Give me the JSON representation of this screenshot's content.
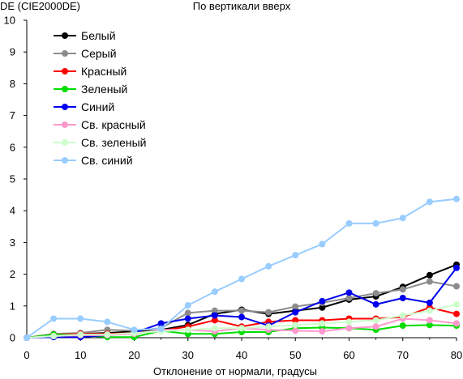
{
  "chart_data": {
    "type": "line",
    "title": "По вертикали вверх",
    "ylabel": "DE (CIE2000DE)",
    "xlabel": "Отклонение от нормали, градусы",
    "xlim": [
      0,
      80
    ],
    "ylim": [
      0,
      10
    ],
    "xticks": [
      0,
      10,
      20,
      30,
      40,
      50,
      60,
      70,
      80
    ],
    "yticks": [
      0,
      1,
      2,
      3,
      4,
      5,
      6,
      7,
      8,
      9,
      10
    ],
    "grid": false,
    "legend_position": "top-left",
    "x": [
      0,
      5,
      10,
      15,
      20,
      25,
      30,
      35,
      40,
      45,
      50,
      55,
      60,
      65,
      70,
      75,
      80
    ],
    "series": [
      {
        "name": "Белый",
        "color": "#000000",
        "values": [
          0,
          0.1,
          0.12,
          0.15,
          0.2,
          0.25,
          0.4,
          0.75,
          0.88,
          0.75,
          0.85,
          0.95,
          1.2,
          1.3,
          1.6,
          1.97,
          2.3
        ]
      },
      {
        "name": "Серый",
        "color": "#8c8c8c",
        "values": [
          0,
          0.12,
          0.15,
          0.25,
          0.22,
          0.3,
          0.78,
          0.85,
          0.85,
          0.8,
          0.98,
          1.1,
          1.25,
          1.4,
          1.52,
          1.77,
          1.62
        ]
      },
      {
        "name": "Красный",
        "color": "#ff0000",
        "values": [
          0,
          0.1,
          0.12,
          0.12,
          0.15,
          0.22,
          0.35,
          0.55,
          0.35,
          0.5,
          0.55,
          0.55,
          0.6,
          0.6,
          0.65,
          0.95,
          0.75
        ]
      },
      {
        "name": "Зеленый",
        "color": "#00dd00",
        "values": [
          0,
          0.1,
          0.08,
          0.02,
          0.02,
          0.22,
          0.12,
          0.12,
          0.18,
          0.18,
          0.3,
          0.32,
          0.3,
          0.25,
          0.38,
          0.4,
          0.38
        ]
      },
      {
        "name": "Синий",
        "color": "#0000ee",
        "values": [
          0,
          0.02,
          0.02,
          0.08,
          0.15,
          0.45,
          0.6,
          0.7,
          0.65,
          0.38,
          0.8,
          1.15,
          1.42,
          1.05,
          1.25,
          1.1,
          2.2
        ]
      },
      {
        "name": "Св. красный",
        "color": "#ff99cc",
        "values": [
          0,
          0.05,
          0.08,
          0.08,
          0.12,
          0.25,
          0.25,
          0.2,
          0.3,
          0.25,
          0.22,
          0.2,
          0.3,
          0.35,
          0.6,
          0.55,
          0.45
        ]
      },
      {
        "name": "Св. зеленый",
        "color": "#ccffcc",
        "values": [
          0,
          0.05,
          0.1,
          0.1,
          0.15,
          0.2,
          0.25,
          0.3,
          0.3,
          0.35,
          0.4,
          0.45,
          0.5,
          0.55,
          0.7,
          0.85,
          1.05
        ]
      },
      {
        "name": "Св. синий",
        "color": "#99ccff",
        "values": [
          0,
          0.6,
          0.6,
          0.5,
          0.25,
          0.28,
          1.02,
          1.45,
          1.85,
          2.25,
          2.6,
          2.95,
          3.6,
          3.6,
          3.77,
          4.28,
          4.37
        ]
      }
    ]
  }
}
